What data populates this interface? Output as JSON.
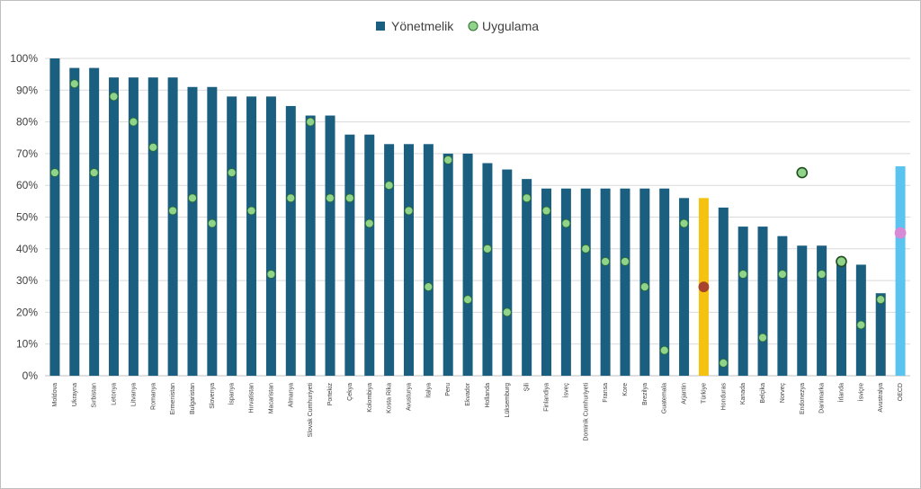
{
  "chart_data": {
    "type": "bar",
    "title": "",
    "xlabel": "",
    "ylabel": "",
    "ylim": [
      0,
      100
    ],
    "y_ticks": [
      "0%",
      "10%",
      "20%",
      "30%",
      "40%",
      "50%",
      "60%",
      "70%",
      "80%",
      "90%",
      "100%"
    ],
    "grid": true,
    "legend_position": "top-center",
    "colors": {
      "bar": "#1a5e80",
      "bar_highlight_turkey": "#f5c211",
      "bar_highlight_oecd": "#5bc3ef",
      "marker": "#8fd48a",
      "marker_edge": "#2e6b2e",
      "marker_turkey": "#a8432e",
      "marker_oecd": "#d98ad6",
      "grid": "#d9d9d9"
    },
    "categories": [
      "Moldova",
      "Ukrayna",
      "Sırbistan",
      "Letonya",
      "Litvanya",
      "Romanya",
      "Ermenistan",
      "Bulgaristan",
      "Slovenya",
      "İspanya",
      "Hırvatistan",
      "Macaristan",
      "Almanya",
      "Slovak Cumhuriyeti",
      "Portekiz",
      "Çekya",
      "Kolombiya",
      "Kosta Rika",
      "Avusturya",
      "İtalya",
      "Peru",
      "Ekvador",
      "Hollanda",
      "Lüksemburg",
      "Şili",
      "Finlandiya",
      "İsveç",
      "Dominik Cumhuriyeti",
      "Fransa",
      "Kore",
      "Brezilya",
      "Guatemala",
      "Arjantin",
      "Türkiye",
      "Honduras",
      "Kanada",
      "Belçika",
      "Norveç",
      "Endonezya",
      "Danimarka",
      "İrlanda",
      "İsviçre",
      "Avustralya",
      "OECD"
    ],
    "series": [
      {
        "name": "Yönetmelik",
        "type": "bar",
        "values": [
          100,
          97,
          97,
          94,
          94,
          94,
          94,
          91,
          91,
          88,
          88,
          88,
          85,
          82,
          82,
          76,
          76,
          73,
          73,
          73,
          70,
          70,
          67,
          65,
          62,
          59,
          59,
          59,
          59,
          59,
          59,
          59,
          56,
          56,
          53,
          47,
          47,
          44,
          41,
          41,
          35,
          35,
          26,
          null
        ]
      },
      {
        "name": "Uygulama",
        "type": "scatter",
        "values": [
          64,
          92,
          64,
          88,
          80,
          72,
          52,
          56,
          48,
          64,
          52,
          32,
          56,
          80,
          56,
          56,
          48,
          60,
          52,
          28,
          68,
          24,
          40,
          20,
          56,
          52,
          48,
          40,
          36,
          36,
          28,
          8,
          48,
          28,
          4,
          32,
          12,
          32,
          64,
          32,
          36,
          16,
          24,
          null
        ]
      }
    ],
    "highlight": {
      "Türkiye": {
        "bar": 56,
        "marker": 28
      },
      "OECD": {
        "bar": 66,
        "marker": 45
      }
    },
    "outlined_markers": [
      "Endonezya",
      "İrlanda"
    ]
  }
}
